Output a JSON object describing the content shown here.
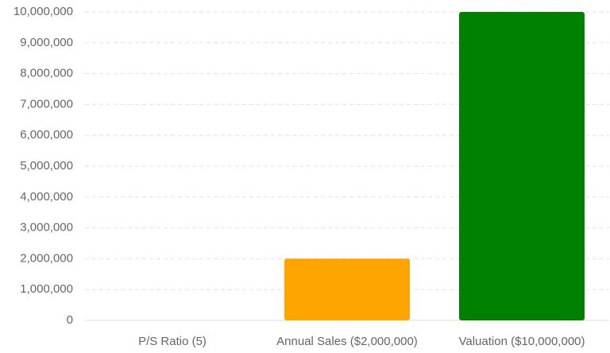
{
  "chart_data": {
    "type": "bar",
    "categories": [
      "P/S Ratio (5)",
      "Annual Sales ($2,000,000)",
      "Valuation ($10,000,000)"
    ],
    "values": [
      5,
      2000000,
      10000000
    ],
    "colors": [
      "#1e90ff",
      "#ffa500",
      "#008000"
    ],
    "ylim": [
      0,
      10000000
    ],
    "yticks": [
      0,
      {
        "value": 1000000,
        "label": "1,000,000"
      },
      {
        "value": 2000000,
        "label": "2,000,000"
      },
      {
        "value": 3000000,
        "label": "3,000,000"
      },
      {
        "value": 4000000,
        "label": "4,000,000"
      },
      {
        "value": 5000000,
        "label": "5,000,000"
      },
      {
        "value": 6000000,
        "label": "6,000,000"
      },
      {
        "value": 7000000,
        "label": "7,000,000"
      },
      {
        "value": 8000000,
        "label": "8,000,000"
      },
      {
        "value": 9000000,
        "label": "9,000,000"
      },
      {
        "value": 10000000,
        "label": "10,000,000"
      }
    ],
    "grid": true
  }
}
